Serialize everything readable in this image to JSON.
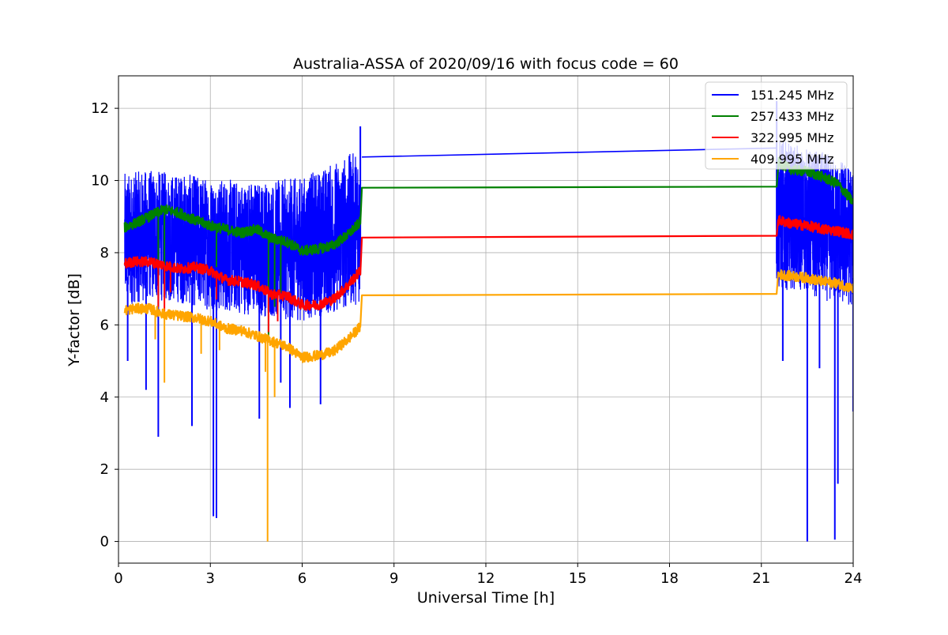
{
  "chart_data": {
    "type": "line",
    "title": "Australia-ASSA of 2020/09/16 with focus code = 60",
    "xlabel": "Universal Time [h]",
    "ylabel": "Y-factor [dB]",
    "xlim": [
      0,
      24
    ],
    "ylim": [
      -0.6,
      12.9
    ],
    "xticks": [
      0,
      3,
      6,
      9,
      12,
      15,
      18,
      21,
      24
    ],
    "yticks": [
      0,
      2,
      4,
      6,
      8,
      10,
      12
    ],
    "grid": true,
    "legend_position": "top-right",
    "series": [
      {
        "name": "151.245 MHz",
        "color": "#0000ff",
        "style": "noisy-envelope",
        "band_x": [
          0.2,
          1,
          2,
          3,
          4,
          5,
          6,
          7,
          7.9,
          21.5,
          22,
          23,
          23.6,
          24
        ],
        "band_lower": [
          6.5,
          6.7,
          6.6,
          6.4,
          6.3,
          6.2,
          6.1,
          6.3,
          6.6,
          6.9,
          7.0,
          6.7,
          6.5,
          6.5
        ],
        "band_upper": [
          10.2,
          10.3,
          10.2,
          10.1,
          10.0,
          10.0,
          10.1,
          10.5,
          10.9,
          11.2,
          11.0,
          10.8,
          10.6,
          10.4
        ],
        "spikes_x": [
          0.3,
          0.9,
          1.3,
          2.4,
          3.1,
          3.2,
          4.6,
          5.3,
          5.6,
          6.6,
          7.9,
          21.5,
          21.7,
          22.5,
          22.9,
          23.4,
          23.5,
          24.0
        ],
        "spikes_y": [
          5.0,
          4.2,
          2.9,
          3.2,
          0.7,
          0.65,
          3.4,
          4.4,
          3.7,
          3.8,
          11.5,
          12.2,
          5.0,
          0.0,
          4.8,
          0.05,
          1.6,
          3.6
        ],
        "bridge_x": [
          7.95,
          21.5
        ],
        "bridge_y": [
          10.65,
          10.9
        ]
      },
      {
        "name": "257.433 MHz",
        "color": "#008000",
        "x": [
          0.2,
          0.5,
          1.0,
          1.5,
          2.0,
          2.5,
          3.0,
          3.5,
          4.0,
          4.5,
          5.0,
          5.5,
          6.0,
          6.5,
          7.0,
          7.5,
          7.9,
          7.95,
          21.5,
          21.55,
          22.0,
          22.5,
          23.0,
          23.5,
          24.0
        ],
        "y": [
          8.7,
          8.8,
          9.0,
          9.2,
          9.1,
          8.9,
          8.75,
          8.65,
          8.55,
          8.65,
          8.4,
          8.3,
          8.05,
          8.1,
          8.2,
          8.5,
          8.85,
          9.8,
          9.83,
          10.5,
          10.3,
          10.25,
          10.1,
          9.9,
          9.4
        ],
        "spikes_x": [
          1.3,
          1.5,
          3.2,
          4.9,
          5.1,
          5.3
        ],
        "spikes_y": [
          7.2,
          7.0,
          7.6,
          5.6,
          6.5,
          6.9
        ]
      },
      {
        "name": "322.995 MHz",
        "color": "#ff0000",
        "x": [
          0.2,
          0.5,
          1.0,
          1.5,
          2.0,
          2.5,
          3.0,
          3.5,
          4.0,
          4.5,
          5.0,
          5.5,
          6.0,
          6.5,
          7.0,
          7.5,
          7.9,
          7.95,
          21.5,
          21.55,
          22.0,
          22.5,
          23.0,
          23.5,
          24.0
        ],
        "y": [
          7.7,
          7.75,
          7.75,
          7.65,
          7.55,
          7.6,
          7.5,
          7.25,
          7.2,
          7.1,
          6.85,
          6.8,
          6.55,
          6.55,
          6.7,
          7.1,
          7.5,
          8.42,
          8.47,
          8.9,
          8.8,
          8.75,
          8.65,
          8.6,
          8.5
        ],
        "spikes_x": [
          1.3,
          1.5,
          1.7,
          3.2,
          4.9,
          5.2
        ],
        "spikes_y": [
          6.5,
          6.2,
          6.9,
          6.7,
          5.8,
          6.1
        ]
      },
      {
        "name": "409.995 MHz",
        "color": "#ffa500",
        "x": [
          0.2,
          0.5,
          1.0,
          1.5,
          2.0,
          2.5,
          3.0,
          3.5,
          4.0,
          4.5,
          5.0,
          5.5,
          6.0,
          6.5,
          7.0,
          7.5,
          7.9,
          7.95,
          21.5,
          21.55,
          22.0,
          22.5,
          23.0,
          23.5,
          24.0
        ],
        "y": [
          6.4,
          6.45,
          6.45,
          6.3,
          6.25,
          6.2,
          6.1,
          5.9,
          5.85,
          5.7,
          5.55,
          5.4,
          5.1,
          5.15,
          5.25,
          5.6,
          5.95,
          6.82,
          6.86,
          7.4,
          7.35,
          7.3,
          7.2,
          7.15,
          7.0
        ],
        "spikes_x": [
          1.2,
          1.5,
          2.7,
          3.3,
          4.8,
          4.87,
          5.1
        ],
        "spikes_y": [
          5.6,
          4.4,
          5.2,
          5.3,
          4.7,
          0.0,
          4.0
        ]
      }
    ]
  }
}
